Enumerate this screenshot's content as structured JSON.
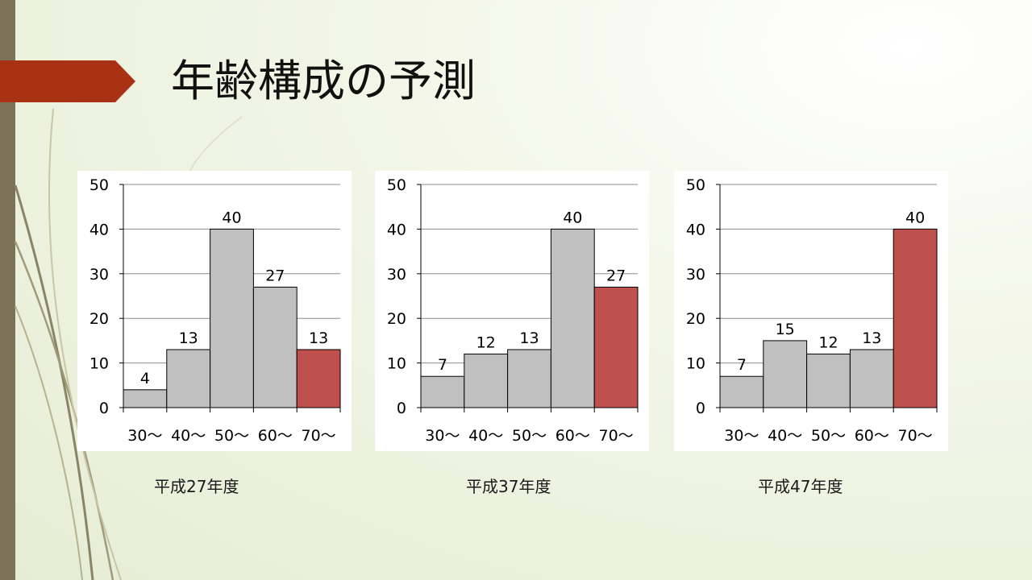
{
  "slide": {
    "title": "年齢構成の予測",
    "colors": {
      "bar": "#c0c0c0",
      "highlight": "#c0504d",
      "title_arrow": "#a93214",
      "left_bar": "#7b7257"
    }
  },
  "chart_data": [
    {
      "type": "bar",
      "title": "",
      "caption": "平成27年度",
      "xlabel": "",
      "ylabel": "",
      "categories": [
        "30～",
        "40～",
        "50～",
        "60～",
        "70～"
      ],
      "values": [
        4,
        13,
        40,
        27,
        13
      ],
      "highlight_index": 4,
      "yticks": [
        "0",
        "10",
        "20",
        "30",
        "40",
        "50"
      ],
      "ylim": [
        0,
        50
      ],
      "grid": true,
      "legend": "none"
    },
    {
      "type": "bar",
      "title": "",
      "caption": "平成37年度",
      "xlabel": "",
      "ylabel": "",
      "categories": [
        "30～",
        "40～",
        "50～",
        "60～",
        "70～"
      ],
      "values": [
        7,
        12,
        13,
        40,
        27
      ],
      "highlight_index": 4,
      "yticks": [
        "0",
        "10",
        "20",
        "30",
        "40",
        "50"
      ],
      "ylim": [
        0,
        50
      ],
      "grid": true,
      "legend": "none"
    },
    {
      "type": "bar",
      "title": "",
      "caption": "平成47年度",
      "xlabel": "",
      "ylabel": "",
      "categories": [
        "30～",
        "40～",
        "50～",
        "60～",
        "70～"
      ],
      "values": [
        7,
        15,
        12,
        13,
        40
      ],
      "highlight_index": 4,
      "yticks": [
        "0",
        "10",
        "20",
        "30",
        "40",
        "50"
      ],
      "ylim": [
        0,
        50
      ],
      "grid": true,
      "legend": "none"
    }
  ]
}
